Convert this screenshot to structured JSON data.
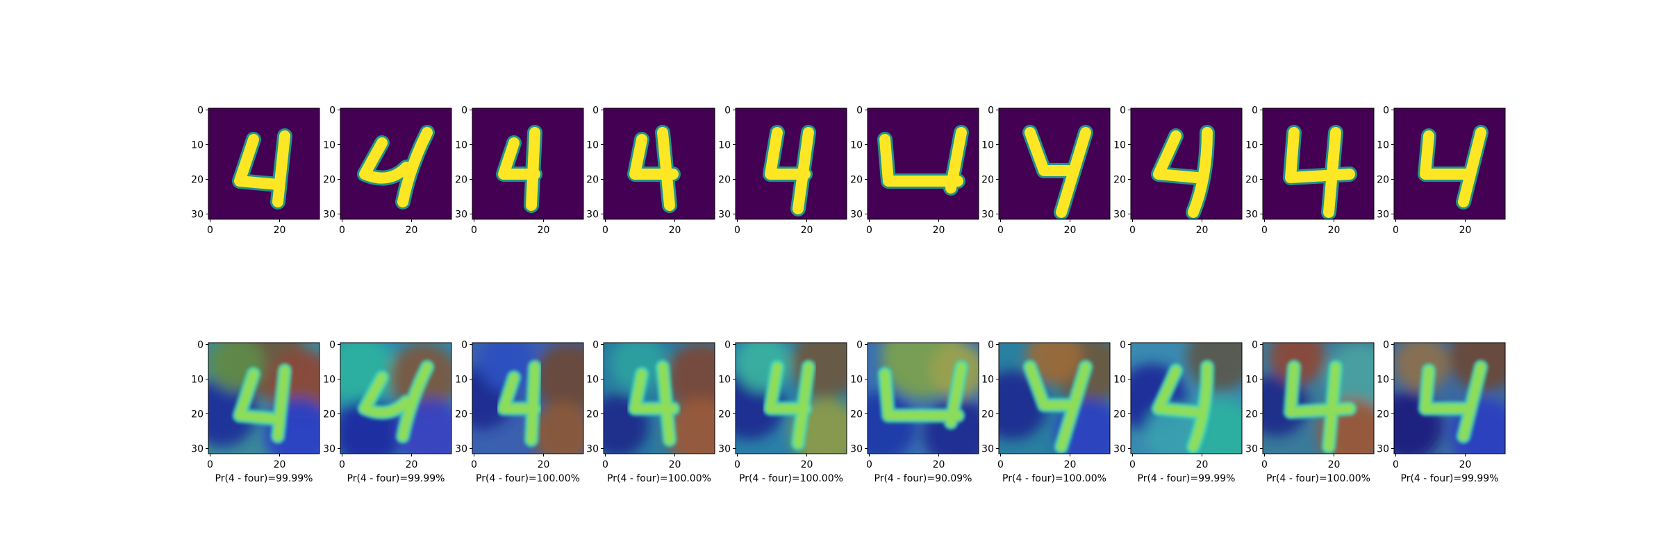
{
  "panels": [
    {
      "caption": "Pr(4 - four)=99.99%"
    },
    {
      "caption": "Pr(4 - four)=99.99%"
    },
    {
      "caption": "Pr(4 - four)=100.00%"
    },
    {
      "caption": "Pr(4 - four)=100.00%"
    },
    {
      "caption": "Pr(4 - four)=100.00%"
    },
    {
      "caption": "Pr(4 - four)=90.09%"
    },
    {
      "caption": "Pr(4 - four)=100.00%"
    },
    {
      "caption": "Pr(4 - four)=99.99%"
    },
    {
      "caption": "Pr(4 - four)=100.00%"
    },
    {
      "caption": "Pr(4 - four)=99.99%"
    }
  ],
  "axes": {
    "x_ticks": [
      "0",
      "20"
    ],
    "y_ticks": [
      "0",
      "10",
      "20",
      "30"
    ]
  },
  "colors": {
    "viridis_background": "#440154",
    "viridis_stroke": "#fde725",
    "viridis_edge": "#21918c"
  }
}
